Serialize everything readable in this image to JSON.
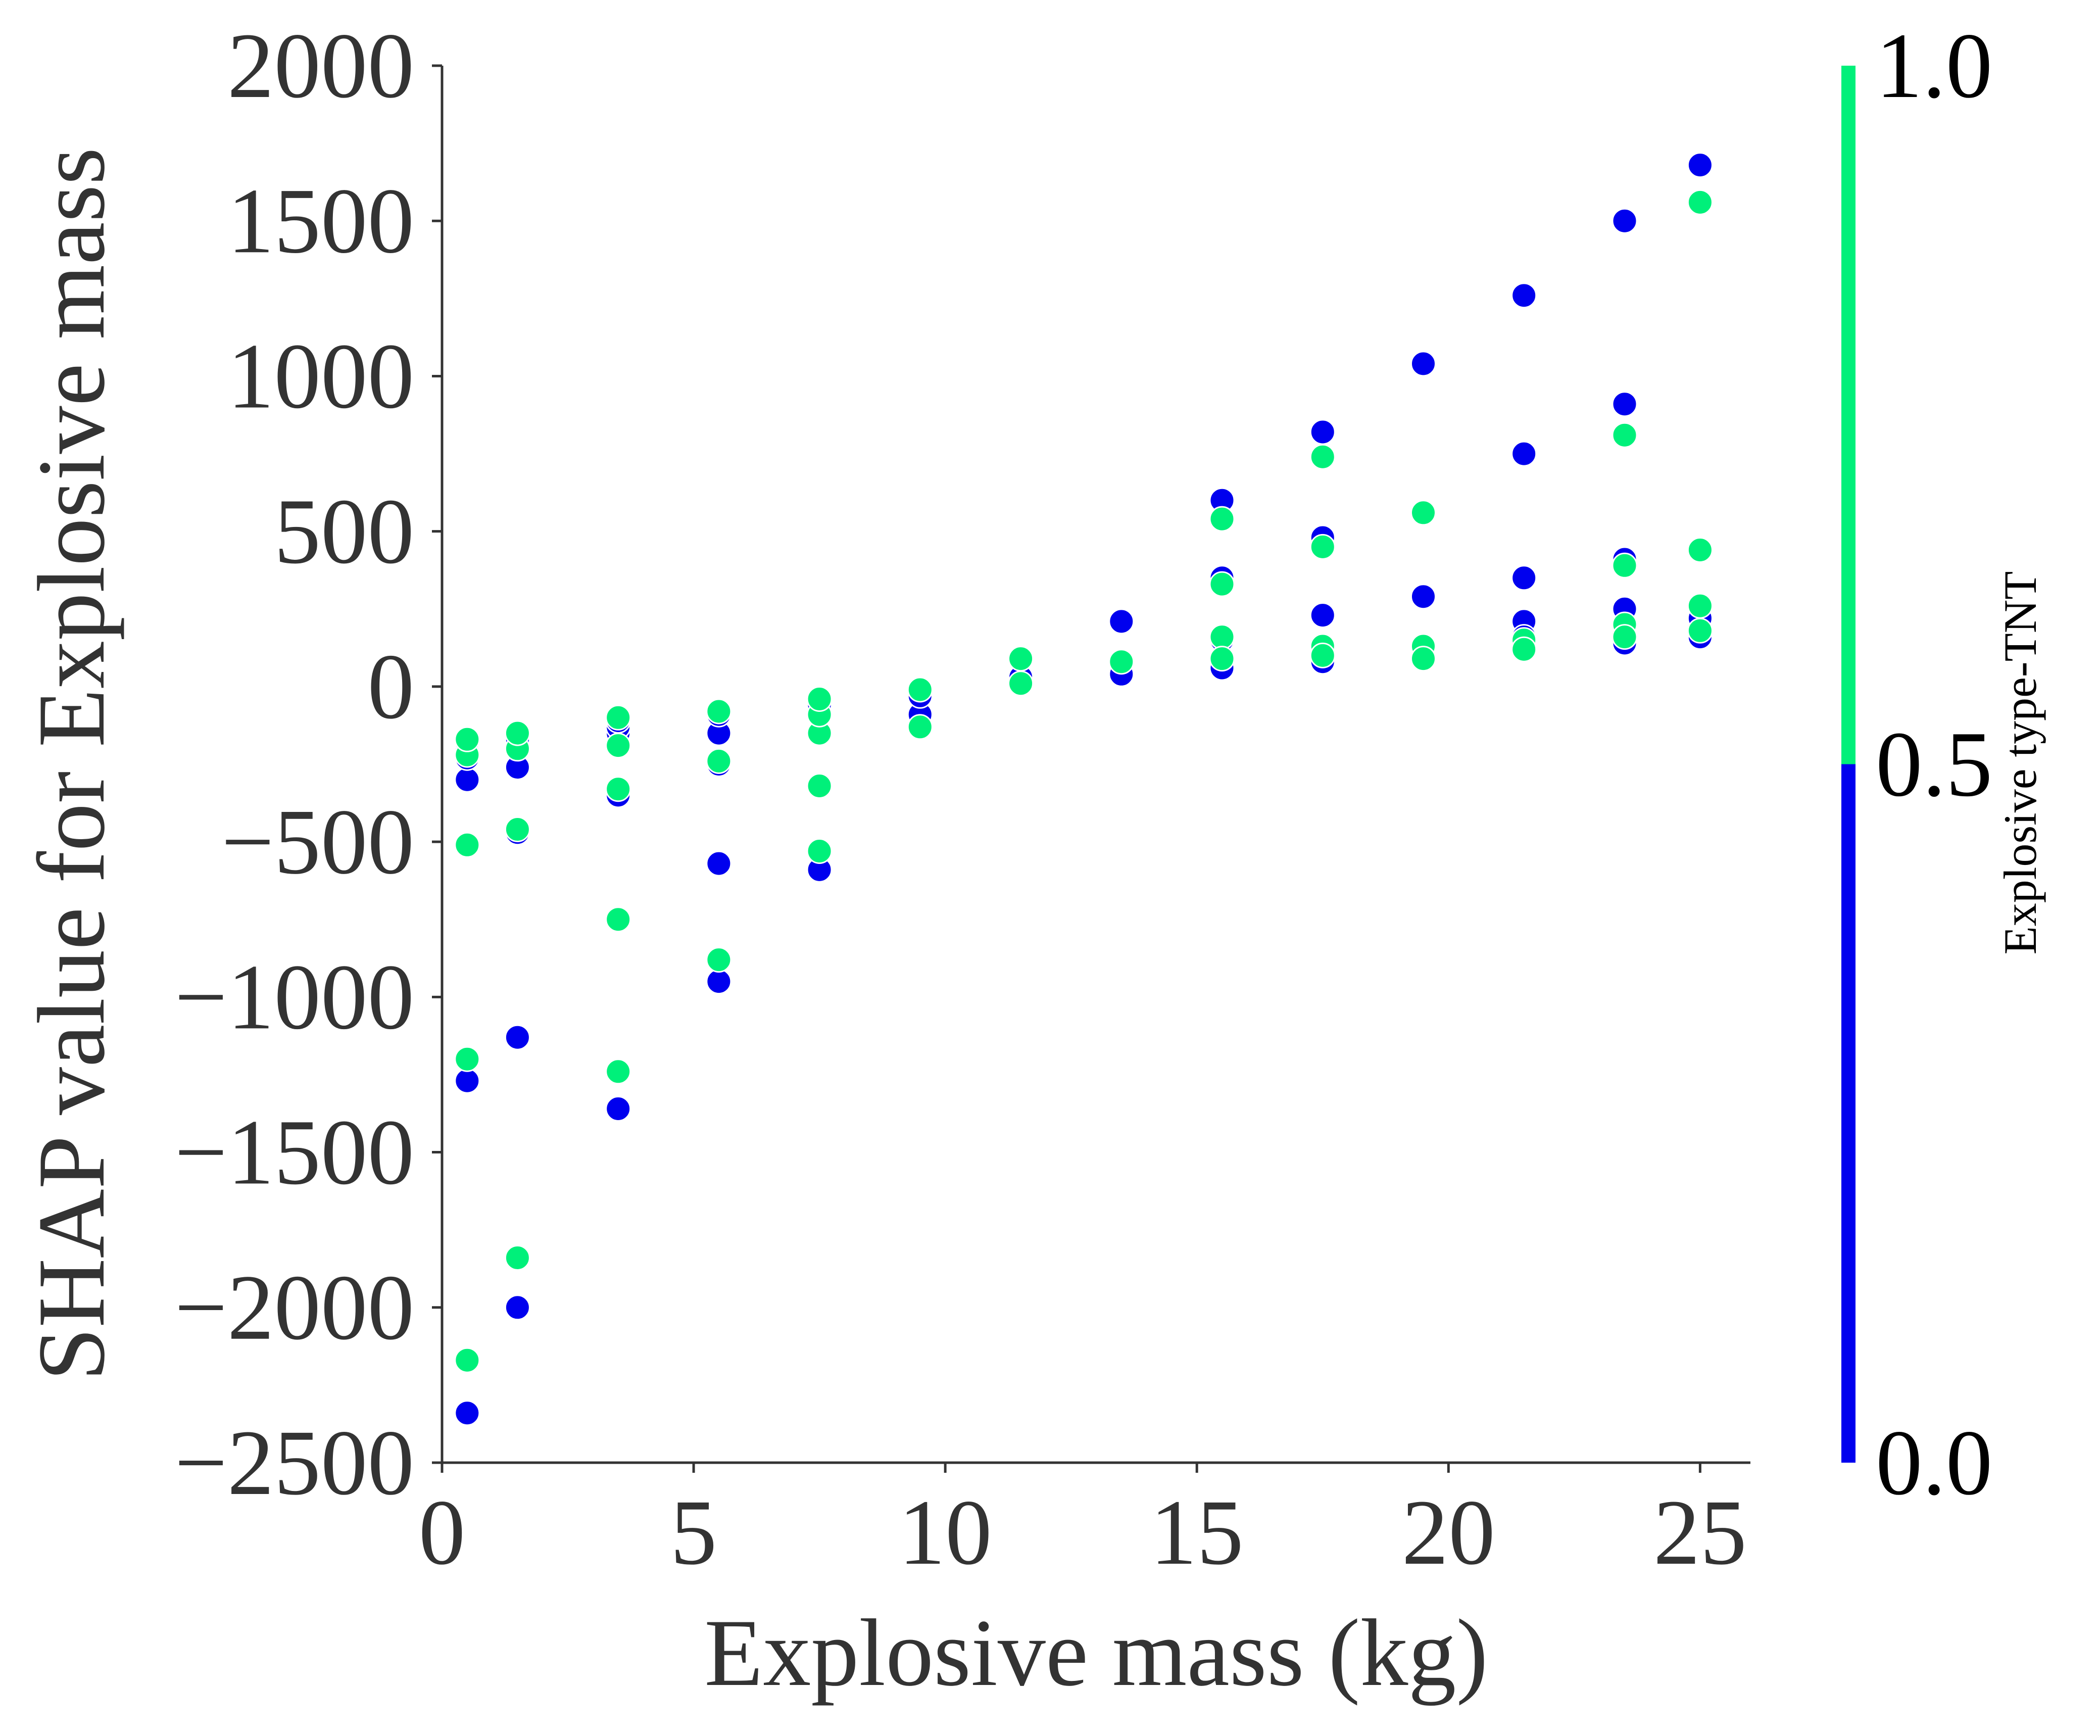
{
  "chart_data": {
    "type": "scatter",
    "title": "",
    "xlabel": "Explosive mass (kg)",
    "ylabel": "SHAP value for Explosive mass",
    "xlim": [
      0,
      26
    ],
    "ylim": [
      -2500,
      2000
    ],
    "x_ticks": [
      0,
      5,
      10,
      15,
      20,
      25
    ],
    "y_ticks": [
      -2500,
      -2000,
      -1500,
      -1000,
      -500,
      0,
      500,
      1000,
      1500,
      2000
    ],
    "x_tick_labels": [
      "0",
      "5",
      "10",
      "15",
      "20",
      "25"
    ],
    "y_tick_labels": [
      "−2500",
      "−2000",
      "−1500",
      "−1000",
      "−500",
      "0",
      "500",
      "1000",
      "1500",
      "2000"
    ],
    "grid": false,
    "colorbar": {
      "label": "Explosive type-TNT",
      "range": [
        0.0,
        1.0
      ],
      "ticks": [
        "0.0",
        "0.5",
        "1.0"
      ],
      "low_color": "#0000ee",
      "high_color": "#00f07a"
    },
    "series": [
      {
        "color_value": 0,
        "color": "#0000ee",
        "points": [
          [
            0.5,
            -2340
          ],
          [
            0.5,
            -1270
          ],
          [
            0.5,
            -300
          ],
          [
            0.5,
            -230
          ],
          [
            0.5,
            -200
          ],
          [
            0.5,
            -180
          ],
          [
            1.5,
            -2000
          ],
          [
            1.5,
            -1130
          ],
          [
            1.5,
            -470
          ],
          [
            1.5,
            -260
          ],
          [
            1.5,
            -170
          ],
          [
            1.5,
            -150
          ],
          [
            3.5,
            -1360
          ],
          [
            3.5,
            -350
          ],
          [
            3.5,
            -150
          ],
          [
            3.5,
            -130
          ],
          [
            3.5,
            -110
          ],
          [
            5.5,
            -950
          ],
          [
            5.5,
            -570
          ],
          [
            5.5,
            -250
          ],
          [
            5.5,
            -150
          ],
          [
            5.5,
            -90
          ],
          [
            7.5,
            -590
          ],
          [
            7.5,
            -60
          ],
          [
            9.5,
            -90
          ],
          [
            9.5,
            -30
          ],
          [
            11.5,
            30
          ],
          [
            13.5,
            210
          ],
          [
            13.5,
            40
          ],
          [
            15.5,
            600
          ],
          [
            15.5,
            350
          ],
          [
            15.5,
            150
          ],
          [
            15.5,
            70
          ],
          [
            15.5,
            60
          ],
          [
            17.5,
            820
          ],
          [
            17.5,
            480
          ],
          [
            17.5,
            230
          ],
          [
            17.5,
            120
          ],
          [
            17.5,
            80
          ],
          [
            19.5,
            1040
          ],
          [
            19.5,
            290
          ],
          [
            19.5,
            110
          ],
          [
            21.5,
            1260
          ],
          [
            21.5,
            750
          ],
          [
            21.5,
            350
          ],
          [
            21.5,
            210
          ],
          [
            21.5,
            160
          ],
          [
            21.5,
            130
          ],
          [
            23.5,
            1500
          ],
          [
            23.5,
            910
          ],
          [
            23.5,
            410
          ],
          [
            23.5,
            250
          ],
          [
            23.5,
            180
          ],
          [
            23.5,
            140
          ],
          [
            25,
            1680
          ],
          [
            25,
            220
          ],
          [
            25,
            180
          ],
          [
            25,
            160
          ]
        ]
      },
      {
        "color_value": 1,
        "color": "#00f07a",
        "points": [
          [
            0.5,
            -2170
          ],
          [
            0.5,
            -1200
          ],
          [
            0.5,
            -510
          ],
          [
            0.5,
            -220
          ],
          [
            0.5,
            -170
          ],
          [
            1.5,
            -1840
          ],
          [
            1.5,
            -460
          ],
          [
            1.5,
            -200
          ],
          [
            1.5,
            -150
          ],
          [
            3.5,
            -1240
          ],
          [
            3.5,
            -750
          ],
          [
            3.5,
            -330
          ],
          [
            3.5,
            -190
          ],
          [
            3.5,
            -100
          ],
          [
            5.5,
            -880
          ],
          [
            5.5,
            -240
          ],
          [
            5.5,
            -80
          ],
          [
            7.5,
            -530
          ],
          [
            7.5,
            -320
          ],
          [
            7.5,
            -150
          ],
          [
            7.5,
            -90
          ],
          [
            7.5,
            -40
          ],
          [
            9.5,
            -130
          ],
          [
            9.5,
            -10
          ],
          [
            11.5,
            90
          ],
          [
            11.5,
            10
          ],
          [
            13.5,
            80
          ],
          [
            15.5,
            540
          ],
          [
            15.5,
            330
          ],
          [
            15.5,
            160
          ],
          [
            15.5,
            90
          ],
          [
            17.5,
            740
          ],
          [
            17.5,
            450
          ],
          [
            17.5,
            130
          ],
          [
            17.5,
            100
          ],
          [
            19.5,
            560
          ],
          [
            19.5,
            130
          ],
          [
            19.5,
            90
          ],
          [
            21.5,
            150
          ],
          [
            21.5,
            120
          ],
          [
            23.5,
            810
          ],
          [
            23.5,
            390
          ],
          [
            23.5,
            200
          ],
          [
            23.5,
            160
          ],
          [
            25,
            1560
          ],
          [
            25,
            440
          ],
          [
            25,
            260
          ],
          [
            25,
            180
          ]
        ]
      }
    ]
  }
}
